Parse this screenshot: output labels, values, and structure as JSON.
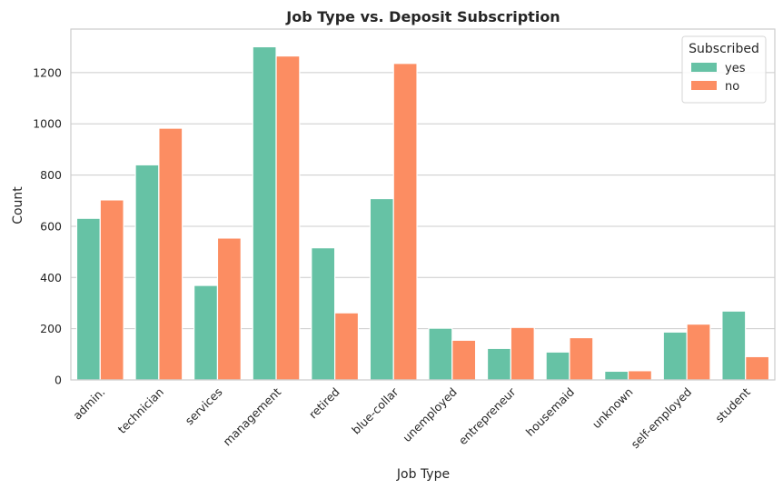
{
  "chart_data": {
    "type": "bar",
    "title": "Job Type vs. Deposit Subscription",
    "xlabel": "Job Type",
    "ylabel": "Count",
    "categories": [
      "admin.",
      "technician",
      "services",
      "management",
      "retired",
      "blue-collar",
      "unemployed",
      "entrepreneur",
      "housemaid",
      "unknown",
      "self-employed",
      "student"
    ],
    "series": [
      {
        "name": "yes",
        "color": "#66c2a5",
        "values": [
          631,
          840,
          369,
          1301,
          516,
          708,
          202,
          123,
          109,
          34,
          187,
          269
        ]
      },
      {
        "name": "no",
        "color": "#fc8d62",
        "values": [
          703,
          983,
          554,
          1265,
          262,
          1236,
          155,
          205,
          165,
          36,
          218,
          91
        ]
      }
    ],
    "ylim": [
      0,
      1370
    ],
    "yticks": [
      0,
      200,
      400,
      600,
      800,
      1000,
      1200
    ],
    "grid": true,
    "legend": {
      "title": "Subscribed",
      "placement": "top-right"
    }
  }
}
